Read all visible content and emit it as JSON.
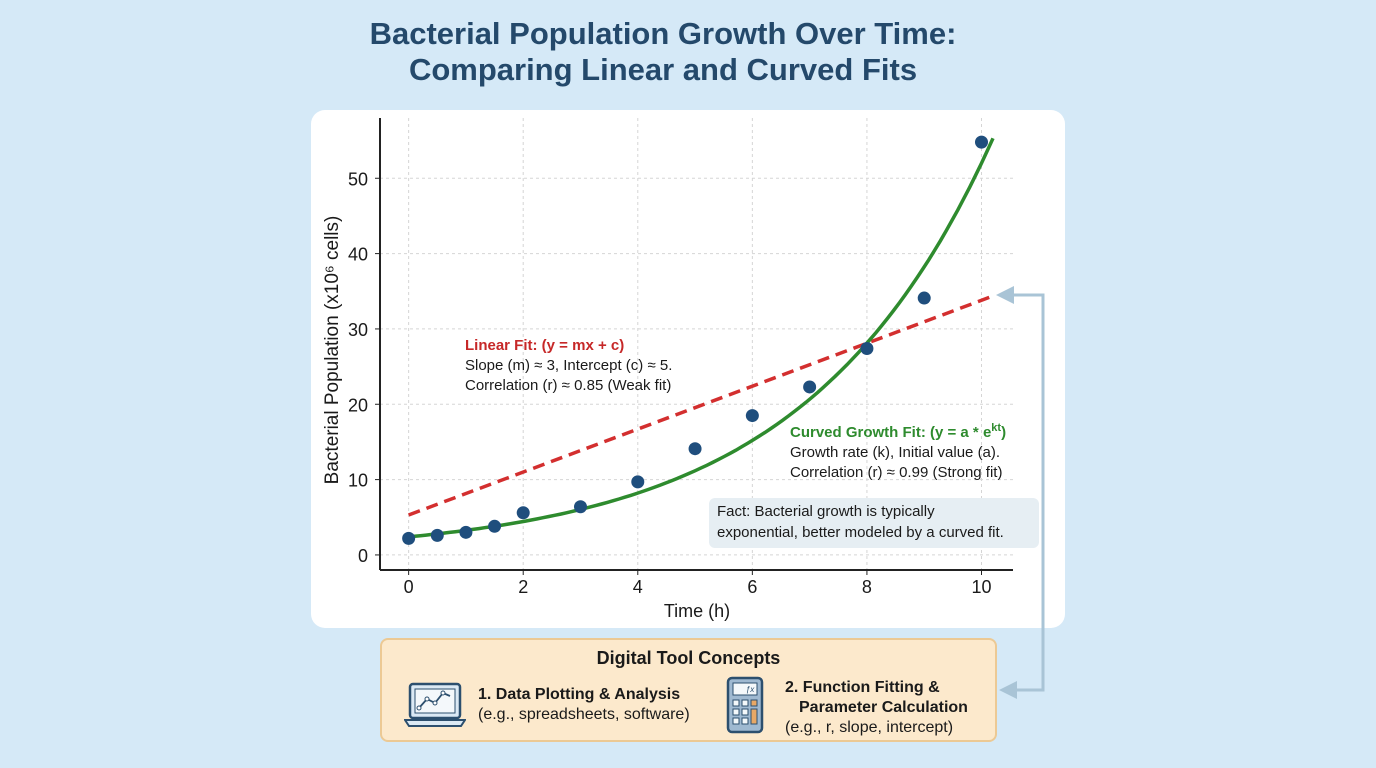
{
  "title": {
    "line1": "Bacterial Population Growth Over Time:",
    "line2": "Comparing Linear and Curved Fits"
  },
  "chart_data": {
    "type": "scatter",
    "xlabel": "Time (h)",
    "ylabel": "Bacterial Population (x10⁶ cells)",
    "xlim": [
      -0.5,
      10.55
    ],
    "ylim": [
      -2,
      58
    ],
    "xticks": [
      0,
      2,
      4,
      6,
      8,
      10
    ],
    "yticks": [
      0,
      10,
      20,
      30,
      40,
      50
    ],
    "grid": true,
    "series": [
      {
        "kind": "points",
        "color": "#1f4e7d",
        "x": [
          0,
          0.5,
          1,
          1.5,
          2,
          3,
          4,
          5,
          6,
          7,
          8,
          9,
          10
        ],
        "y": [
          2.2,
          2.6,
          3.0,
          3.8,
          5.6,
          6.4,
          9.7,
          14.1,
          18.5,
          22.3,
          27.4,
          34.1,
          54.8
        ]
      },
      {
        "kind": "linear-fit",
        "color": "#d32f2f",
        "style": "dashed",
        "slope": 2.85,
        "intercept": 5.3,
        "x_range": [
          0,
          10.2
        ]
      },
      {
        "kind": "exponential-fit",
        "color": "#2e8b2e",
        "a": 2.4,
        "k": 0.3076,
        "x_range": [
          0,
          10.2
        ]
      }
    ],
    "annotations": {
      "linear": {
        "heading": "Linear Fit: (y = mx + c)",
        "line1": "Slope (m) ≈ 3,  Intercept (c) ≈ 5.",
        "line2": "Correlation (r) ≈ 0.85 (Weak fit)"
      },
      "curved": {
        "heading": "Curved Growth Fit: (y = a * e",
        "heading_sup": "kt",
        "heading_end": ")",
        "line1": "Growth rate (k), Initial value (a).",
        "line2": "Correlation (r) ≈ 0.99 (Strong fit)"
      },
      "fact": {
        "line1": "Fact: Bacterial growth is typically",
        "line2": "exponential, better modeled by a curved fit."
      }
    }
  },
  "tools": {
    "heading": "Digital Tool Concepts",
    "items": [
      {
        "icon": "laptop-chart-icon",
        "title": "1. Data Plotting & Analysis",
        "subtitle": "(e.g., spreadsheets, software)"
      },
      {
        "icon": "calculator-icon",
        "title_line1": "2. Function Fitting &",
        "title_line2": "Parameter Calculation",
        "subtitle": "(e.g., r, slope, intercept)"
      }
    ]
  },
  "colors": {
    "background": "#d5e9f7",
    "title": "#24496b",
    "connector": "#a9c4d6",
    "tools_box": "#fce9cc"
  }
}
